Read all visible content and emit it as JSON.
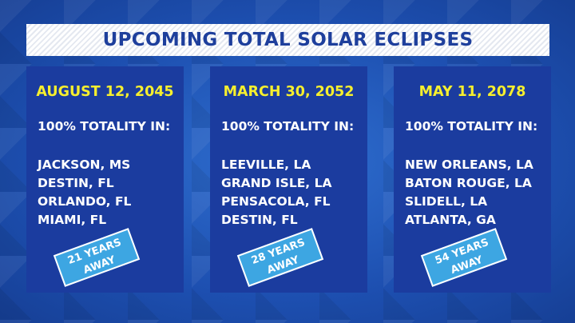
{
  "title": "UPCOMING TOTAL SOLAR ECLIPSES",
  "columns": [
    {
      "date": "AUGUST 12, 2045",
      "heading": "100% TOTALITY IN:",
      "cities": [
        "JACKSON, MS",
        "DESTIN, FL",
        "ORLANDO, FL",
        "MIAMI, FL"
      ],
      "badge": [
        "21 YEARS",
        "AWAY"
      ]
    },
    {
      "date": "MARCH 30, 2052",
      "heading": "100% TOTALITY IN:",
      "cities": [
        "LEEVILLE, LA",
        "GRAND ISLE, LA",
        "PENSACOLA, FL",
        "DESTIN, FL"
      ],
      "badge": [
        "28 YEARS",
        "AWAY"
      ]
    },
    {
      "date": "MAY 11, 2078",
      "heading": "100% TOTALITY IN:",
      "cities": [
        "NEW ORLEANS, LA",
        "BATON ROUGE, LA",
        "SLIDELL, LA",
        "ATLANTA, GA"
      ],
      "badge": [
        "54 YEARS",
        "AWAY"
      ]
    }
  ]
}
